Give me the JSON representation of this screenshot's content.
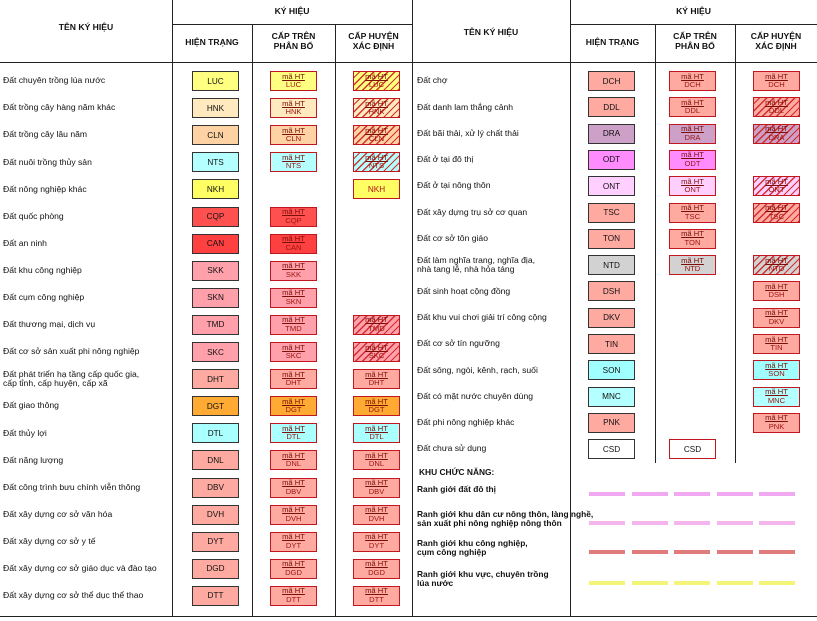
{
  "header": {
    "ten_ky_hieu": "TÊN KÝ HIỆU",
    "ky_hieu": "KÝ HIỆU",
    "hien_trang": "HIỆN TRẠNG",
    "cap_tren": [
      "CẤP TRÊN",
      "PHÂN BỔ"
    ],
    "cap_huyen": [
      "CẤP HUYỆN",
      "XÁC ĐỊNH"
    ]
  },
  "ht_label": "mã HT",
  "left_rows": [
    {
      "name": [
        "Đất chuyên trồng lúa nước"
      ],
      "code": "LUC",
      "color": "#ffff80",
      "tren": "LUC",
      "huyen": "LUC",
      "huyen_style": "hatch"
    },
    {
      "name": [
        "Đất trồng cây hàng năm khác"
      ],
      "code": "HNK",
      "color": "#ffe9bf",
      "tren": "HNK",
      "huyen": "HNK",
      "huyen_style": "hatch"
    },
    {
      "name": [
        "Đất trồng cây lâu năm"
      ],
      "code": "CLN",
      "color": "#ffd2a4",
      "tren": "CLN",
      "huyen": "CLN",
      "huyen_style": "hatch"
    },
    {
      "name": [
        "Đất nuôi trồng thủy sản"
      ],
      "code": "NTS",
      "color": "#b4ffff",
      "tren": "NTS",
      "huyen": "NTS",
      "huyen_style": "hatch"
    },
    {
      "name": [
        "Đất nông nghiệp khác"
      ],
      "code": "NKH",
      "color": "#ffff64",
      "tren": null,
      "huyen": "NKH",
      "huyen_style": "plain"
    },
    {
      "name": [
        "Đất quốc phòng"
      ],
      "code": "CQP",
      "color": "#ff5050",
      "tren": "CQP",
      "huyen": null,
      "huyen_style": ""
    },
    {
      "name": [
        "Đất an ninh"
      ],
      "code": "CAN",
      "color": "#ff4040",
      "tren": "CAN",
      "huyen": null,
      "huyen_style": ""
    },
    {
      "name": [
        "Đất khu công nghiệp"
      ],
      "code": "SKK",
      "color": "#ffa0aa",
      "tren": "SKK",
      "huyen": null,
      "huyen_style": ""
    },
    {
      "name": [
        "Đất cụm công nghiệp"
      ],
      "code": "SKN",
      "color": "#ffa0aa",
      "tren": "SKN",
      "huyen": null,
      "huyen_style": ""
    },
    {
      "name": [
        "Đất thương mại, dịch vụ"
      ],
      "code": "TMD",
      "color": "#ffa0aa",
      "tren": "TMD",
      "huyen": "TMD",
      "huyen_style": "hatch"
    },
    {
      "name": [
        "Đất cơ sở sản xuất phi nông nghiệp"
      ],
      "code": "SKC",
      "color": "#ffa0aa",
      "tren": "SKC",
      "huyen": "SKC",
      "huyen_style": "hatch"
    },
    {
      "name": [
        "Đất phát triển hạ tầng cấp quốc gia,",
        "cấp tỉnh, cấp huyện, cấp xã"
      ],
      "code": "DHT",
      "color": "#ffaaa0",
      "tren": "DHT",
      "huyen": "DHT",
      "huyen_style": "plain"
    },
    {
      "name": [
        "Đất giao thông"
      ],
      "code": "DGT",
      "color": "#ffaa32",
      "tren": "DGT",
      "huyen": "DGT",
      "huyen_style": "plain"
    },
    {
      "name": [
        "Đất thủy lợi"
      ],
      "code": "DTL",
      "color": "#aaffff",
      "tren": "DTL",
      "huyen": "DTL",
      "huyen_style": "plain"
    },
    {
      "name": [
        "Đất năng lượng"
      ],
      "code": "DNL",
      "color": "#ffaaa0",
      "tren": "DNL",
      "huyen": "DNL",
      "huyen_style": "plain"
    },
    {
      "name": [
        "Đất công trình bưu chính viễn thông"
      ],
      "code": "DBV",
      "color": "#ffaaa0",
      "tren": "DBV",
      "huyen": "DBV",
      "huyen_style": "plain"
    },
    {
      "name": [
        "Đất xây dựng cơ sở văn hóa"
      ],
      "code": "DVH",
      "color": "#ffaaa0",
      "tren": "DVH",
      "huyen": "DVH",
      "huyen_style": "plain"
    },
    {
      "name": [
        "Đất xây dựng cơ sở y tế"
      ],
      "code": "DYT",
      "color": "#ffaaa0",
      "tren": "DYT",
      "huyen": "DYT",
      "huyen_style": "plain"
    },
    {
      "name": [
        "Đất xây dựng cơ sở giáo dục và đào tạo"
      ],
      "code": "DGD",
      "color": "#ffaaa0",
      "tren": "DGD",
      "huyen": "DGD",
      "huyen_style": "plain"
    },
    {
      "name": [
        "Đất xây dựng cơ sở thể dục thể thao"
      ],
      "code": "DTT",
      "color": "#ffaaa0",
      "tren": "DTT",
      "huyen": "DTT",
      "huyen_style": "plain"
    }
  ],
  "right_rows": [
    {
      "name": [
        "Đất chợ"
      ],
      "code": "DCH",
      "color": "#ffaaa0",
      "tren": "DCH",
      "huyen": "DCH",
      "huyen_style": "plain"
    },
    {
      "name": [
        "Đất danh lam thắng cảnh"
      ],
      "code": "DDL",
      "color": "#ffaaa0",
      "tren": "DDL",
      "huyen": "DDL",
      "huyen_style": "hatch"
    },
    {
      "name": [
        "Đất bãi thải, xử lý chất thải"
      ],
      "code": "DRA",
      "color": "#cda0c8",
      "tren": "DRA",
      "huyen": "DRA",
      "huyen_style": "hatch"
    },
    {
      "name": [
        "Đất ở tại đô thị"
      ],
      "code": "ODT",
      "color": "#ff8cff",
      "tren": "ODT",
      "huyen": null,
      "huyen_style": ""
    },
    {
      "name": [
        "Đất ở tại nông thôn"
      ],
      "code": "ONT",
      "color": "#ffd0ff",
      "tren": "ONT",
      "huyen": "ONT",
      "huyen_style": "hatch"
    },
    {
      "name": [
        "Đất xây dựng trụ sở cơ quan"
      ],
      "code": "TSC",
      "color": "#ffaaa0",
      "tren": "TSC",
      "huyen": "TSC",
      "huyen_style": "hatch"
    },
    {
      "name": [
        "Đất cơ sở tôn giáo"
      ],
      "code": "TON",
      "color": "#ffaaa0",
      "tren": "TON",
      "huyen": null,
      "huyen_style": ""
    },
    {
      "name": [
        "Đất làm nghĩa trang, nghĩa địa,",
        "nhà tang lễ, nhà hỏa táng"
      ],
      "code": "NTD",
      "color": "#d2d2d2",
      "tren": "NTD",
      "huyen": "NTD",
      "huyen_style": "hatch"
    },
    {
      "name": [
        "Đất sinh hoạt cộng đồng"
      ],
      "code": "DSH",
      "color": "#ffaaa0",
      "tren": null,
      "huyen": "DSH",
      "huyen_style": "plain"
    },
    {
      "name": [
        "Đất khu vui chơi giải trí công cộng"
      ],
      "code": "DKV",
      "color": "#ffaaa0",
      "tren": null,
      "huyen": "DKV",
      "huyen_style": "plain"
    },
    {
      "name": [
        "Đất cơ sở tín ngưỡng"
      ],
      "code": "TIN",
      "color": "#ffaaa0",
      "tren": null,
      "huyen": "TIN",
      "huyen_style": "plain"
    },
    {
      "name": [
        "Đất sông, ngòi, kênh, rạch, suối"
      ],
      "code": "SON",
      "color": "#a0ffff",
      "tren": null,
      "huyen": "SON",
      "huyen_style": "plain"
    },
    {
      "name": [
        "Đất có mặt nước chuyên dùng"
      ],
      "code": "MNC",
      "color": "#b4ffff",
      "tren": null,
      "huyen": "MNC",
      "huyen_style": "plain"
    },
    {
      "name": [
        "Đất phi nông nghiệp khác"
      ],
      "code": "PNK",
      "color": "#ffaaa0",
      "tren": null,
      "huyen": "PNK",
      "huyen_style": "plain"
    },
    {
      "name": [
        "Đất chưa sử dụng"
      ],
      "code": "CSD",
      "color": "#ffffff",
      "tren_plain": "CSD",
      "tren": null,
      "huyen": null,
      "huyen_style": ""
    }
  ],
  "functional": {
    "title": "KHU CHỨC NĂNG:",
    "items": [
      {
        "label": [
          "Ranh giới đất đô thị"
        ],
        "color": "#f0a8f0"
      },
      {
        "label": [
          "Ranh giới khu dân cư nông thôn, làng nghề,",
          "sản xuất phi nông nghiệp nông thôn"
        ],
        "color": "#f4b4ee"
      },
      {
        "label": [
          "Ranh giới khu công nghiệp,",
          "cụm công nghiệp"
        ],
        "color": "#e07c7c"
      },
      {
        "label": [
          "Ranh giới khu vực, chuyên trồng",
          "lúa nước"
        ],
        "color": "#f4f478"
      }
    ]
  },
  "hatch_color": "#cd2828",
  "border_color": "#c0181e"
}
